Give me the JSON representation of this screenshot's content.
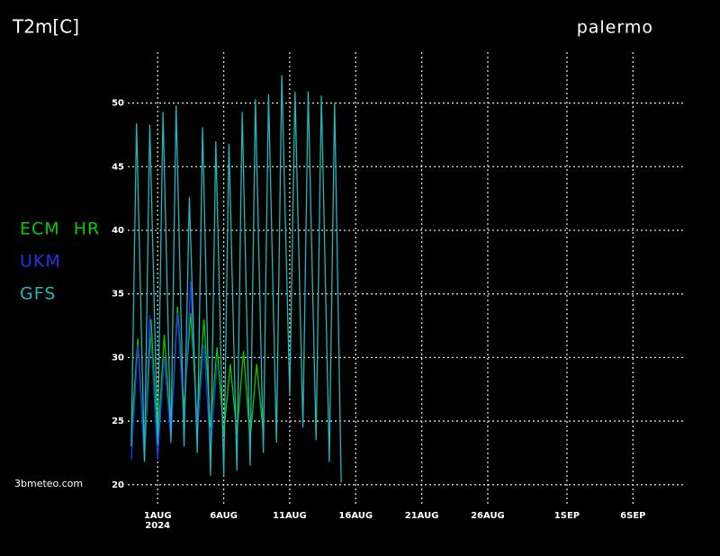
{
  "chart_data": {
    "type": "line",
    "title": "T2m[C]",
    "subtitle": "palermo",
    "source": "3bmeteo.com",
    "x_sublabel": "2024",
    "xlim": [
      -1.4,
      41
    ],
    "ylim": [
      18.5,
      54
    ],
    "xticks": [
      {
        "value": 1,
        "label": "1AUG"
      },
      {
        "value": 6,
        "label": "6AUG"
      },
      {
        "value": 11,
        "label": "11AUG"
      },
      {
        "value": 16,
        "label": "16AUG"
      },
      {
        "value": 21,
        "label": "21AUG"
      },
      {
        "value": 26,
        "label": "26AUG"
      },
      {
        "value": 32,
        "label": "1SEP"
      },
      {
        "value": 37,
        "label": "6SEP"
      }
    ],
    "yticks": [
      20,
      25,
      30,
      35,
      40,
      45,
      50
    ],
    "grid": true,
    "series": [
      {
        "name": "ECM HR",
        "color": "#00cc00",
        "x": [
          -1,
          -0.5,
          0,
          0.5,
          1,
          1.5,
          2,
          2.5,
          3,
          3.5,
          4,
          4.5,
          5,
          5.5,
          6,
          6.5,
          7,
          7.5,
          8,
          8.5,
          9
        ],
        "values": [
          24,
          31.5,
          22,
          33,
          23,
          31.8,
          24,
          34,
          26,
          33.5,
          25,
          33,
          24.5,
          30.8,
          24,
          29.5,
          24,
          30.5,
          23.5,
          29.5,
          24
        ]
      },
      {
        "name": "UKM",
        "color": "#2233ee",
        "x": [
          -1,
          -0.5,
          0,
          0.4,
          1,
          1.5,
          2,
          2.5,
          3,
          3.5,
          4,
          4.5,
          5,
          5.5
        ],
        "values": [
          22,
          31,
          22.2,
          33.3,
          22,
          30,
          23.5,
          33.5,
          25,
          36,
          24,
          31,
          22.5,
          29.5
        ]
      },
      {
        "name": "GFS",
        "color": "#20b8b8",
        "x": [
          -1,
          -0.6,
          0,
          0.4,
          1,
          1.4,
          2,
          2.4,
          3,
          3.4,
          4,
          4.4,
          5,
          5.4,
          6,
          6.4,
          7,
          7.4,
          8,
          8.4,
          9,
          9.4,
          10,
          10.4,
          11,
          11.4,
          12,
          12.4,
          13,
          13.4,
          14,
          14.4,
          14.9
        ],
        "values": [
          23,
          48.4,
          21.8,
          48.3,
          23.2,
          49.3,
          23.3,
          49.8,
          23,
          42.6,
          22.5,
          48.1,
          20.7,
          47,
          20.7,
          46.8,
          21.1,
          49.3,
          21.5,
          50.3,
          22.5,
          50.7,
          23.3,
          52.2,
          27,
          50.9,
          24.5,
          50.9,
          23.5,
          50.6,
          21.8,
          50,
          20.2
        ]
      }
    ]
  }
}
